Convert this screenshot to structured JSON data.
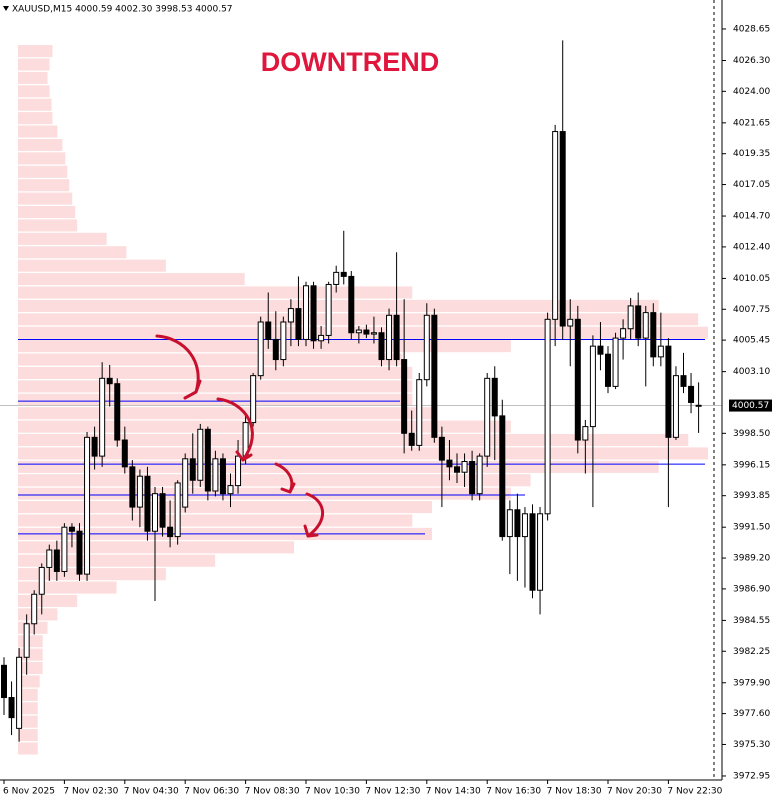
{
  "chart_data": {
    "type": "candlestick",
    "title": "XAUUSD,M15  4000.59 4002.30 3998.53 4000.57",
    "annotation": "DOWNTREND",
    "categories": [
      "6 Nov 2025",
      null,
      null,
      null,
      null,
      null,
      null,
      null,
      "7 Nov 02:30",
      null,
      null,
      null,
      null,
      null,
      null,
      null,
      "7 Nov 04:30",
      null,
      null,
      null,
      null,
      null,
      null,
      null,
      "7 Nov 06:30",
      null,
      null,
      null,
      null,
      null,
      null,
      null,
      "7 Nov 08:30",
      null,
      null,
      null,
      null,
      null,
      null,
      null,
      "7 Nov 10:30",
      null,
      null,
      null,
      null,
      null,
      null,
      null,
      "7 Nov 12:30",
      null,
      null,
      null,
      null,
      null,
      null,
      null,
      "7 Nov 14:30",
      null,
      null,
      null,
      null,
      null,
      null,
      null,
      "7 Nov 16:30",
      null,
      null,
      null,
      null,
      null,
      null,
      null,
      "7 Nov 18:30",
      null,
      null,
      null,
      null,
      null,
      null,
      null,
      "7 Nov 20:30",
      null,
      null,
      null,
      null,
      null,
      null,
      null,
      "7 Nov 22:30",
      null,
      null,
      null,
      null
    ],
    "open": [
      3981.2,
      3978.8,
      3976.5,
      3981.8,
      3984.3,
      3986.5,
      3988.5,
      3989.8,
      3988.2,
      3991.5,
      3991.2,
      3988.0,
      3998.2,
      3996.8,
      4002.6,
      4002.2,
      3998.0,
      3996.0,
      3993.0,
      3995.3,
      3991.2,
      3994.0,
      3991.5,
      3990.8,
      3993.0,
      3996.6,
      3995.0,
      3998.8,
      3994.2,
      3996.6,
      3994.0,
      3994.6,
      3996.8,
      3999.3,
      4002.8,
      4006.8,
      4005.5,
      4004.0,
      4006.8,
      4007.8,
      4005.5,
      4009.5,
      4005.4,
      4005.8,
      4009.6,
      4010.5,
      4010.2,
      4006.0,
      4006.2,
      4005.9,
      4006.0,
      4004.0,
      4007.3,
      4004.0,
      3998.5,
      3997.6,
      4002.5,
      4007.3,
      3998.2,
      3996.5,
      3996.0,
      3995.6,
      3996.4,
      3994.0,
      3996.8,
      4002.6,
      3999.8,
      3990.8,
      3992.8,
      3990.8,
      3992.5,
      3986.8,
      3992.5,
      4007.0,
      4021.0,
      4006.5,
      4007.0,
      3998.0,
      3999.0,
      4005.0,
      4004.4,
      4002.0,
      4005.6,
      4006.3,
      4008.0,
      4005.6,
      4007.5,
      4004.2,
      4005.0,
      3998.2,
      4002.8,
      4002.0,
      4000.59
    ],
    "high": [
      3981.8,
      3980.0,
      3982.5,
      3985.0,
      3986.8,
      3988.8,
      3990.2,
      3990.5,
      3991.8,
      3991.8,
      3991.8,
      3998.6,
      3999.0,
      4003.8,
      4003.6,
      4002.6,
      3999.0,
      3996.5,
      3995.8,
      3996.0,
      3994.5,
      3994.5,
      3993.5,
      3995.0,
      3997.0,
      3998.5,
      3999.2,
      3999.0,
      3997.2,
      3997.0,
      3995.5,
      3998.0,
      3999.8,
      4003.0,
      4007.2,
      4009.0,
      4007.6,
      4007.2,
      4008.5,
      4010.2,
      4009.8,
      4009.8,
      4006.5,
      4009.8,
      4011.0,
      4013.6,
      4010.6,
      4006.5,
      4006.6,
      4007.2,
      4006.4,
      4007.8,
      4012.0,
      4008.5,
      4000.2,
      4003.0,
      4008.2,
      4007.8,
      3999.0,
      3998.0,
      3997.0,
      3997.0,
      3997.2,
      3997.0,
      4003.0,
      4003.5,
      4001.0,
      3993.5,
      3994.0,
      3993.0,
      3993.2,
      3993.0,
      4007.5,
      4021.5,
      4027.8,
      4008.5,
      4008.0,
      3999.5,
      4005.8,
      4006.8,
      4005.0,
      4006.0,
      4007.0,
      4008.6,
      4009.0,
      4008.0,
      4008.2,
      4007.5,
      4005.6,
      4003.5,
      4004.5,
      4003.0,
      4002.3
    ],
    "low": [
      3977.5,
      3976.0,
      3975.5,
      3980.5,
      3983.5,
      3985.0,
      3987.5,
      3987.5,
      3987.8,
      3990.0,
      3987.5,
      3987.5,
      3995.8,
      3996.0,
      4000.5,
      3997.5,
      3995.5,
      3992.0,
      3991.5,
      3990.5,
      3986.0,
      3990.8,
      3990.0,
      3990.2,
      3992.6,
      3994.0,
      3994.5,
      3993.5,
      3993.8,
      3993.5,
      3993.0,
      3994.0,
      3996.2,
      3999.0,
      4002.5,
      4004.8,
      4003.2,
      4003.5,
      4005.0,
      4005.0,
      4005.0,
      4004.8,
      4004.8,
      4005.2,
      4009.0,
      4009.6,
      4005.5,
      4005.2,
      4005.6,
      4005.2,
      4003.5,
      4003.2,
      4003.5,
      3997.0,
      3997.2,
      3997.2,
      4002.0,
      3997.8,
      3993.0,
      3995.0,
      3994.8,
      3994.5,
      3993.5,
      3993.5,
      3996.0,
      3996.5,
      3990.5,
      3988.0,
      3987.5,
      3987.0,
      3986.2,
      3985.0,
      3992.0,
      4005.0,
      4005.5,
      4003.5,
      3997.0,
      3995.5,
      3993.0,
      4003.2,
      4001.5,
      4001.8,
      4004.0,
      4005.5,
      4005.0,
      4002.0,
      4003.5,
      4003.5,
      3993.0,
      3998.0,
      4001.5,
      4000.0,
      3998.53
    ],
    "close": [
      3978.8,
      3977.3,
      3981.8,
      3984.3,
      3986.5,
      3988.5,
      3989.8,
      3988.2,
      3991.5,
      3991.2,
      3988.0,
      3998.2,
      3996.8,
      4002.6,
      4002.2,
      3998.0,
      3996.0,
      3993.0,
      3995.3,
      3991.2,
      3994.0,
      3991.5,
      3990.8,
      3994.8,
      3996.6,
      3995.0,
      3998.8,
      3994.2,
      3996.6,
      3994.0,
      3994.6,
      3996.8,
      3999.3,
      4002.8,
      4006.8,
      4005.5,
      4004.0,
      4006.8,
      4007.8,
      4005.5,
      4009.5,
      4005.4,
      4005.8,
      4009.6,
      4010.5,
      4010.2,
      4006.0,
      4006.2,
      4005.9,
      4006.0,
      4004.0,
      4007.3,
      4004.0,
      3998.5,
      3997.6,
      4002.5,
      4007.3,
      3998.2,
      3996.5,
      3996.0,
      3995.6,
      3996.4,
      3994.0,
      3996.8,
      4002.6,
      3999.8,
      3990.8,
      3992.8,
      3990.8,
      3992.5,
      3986.8,
      3992.5,
      4007.0,
      4021.0,
      4006.5,
      4007.0,
      3998.0,
      3999.0,
      4005.0,
      4004.4,
      4002.0,
      4005.6,
      4006.3,
      4008.0,
      4005.6,
      4007.5,
      4004.2,
      4005.0,
      3998.2,
      4002.8,
      4002.0,
      4000.8,
      4000.57
    ],
    "up_color": "#ffffff",
    "down_color": "#000000",
    "levels": [
      4005.5,
      4000.9,
      3996.2,
      3993.9,
      3991.0
    ],
    "level_color": "#0000ff",
    "volume_profile": {
      "color": "#fcdcdc",
      "prices": [
        4027,
        4026,
        4025,
        4024,
        4023,
        4022,
        4021,
        4020,
        4019,
        4018,
        4017,
        4016,
        4015,
        4014,
        4013,
        4012,
        4011,
        4010,
        4009,
        4008,
        4007,
        4006,
        4005,
        4004,
        4003,
        4002,
        4001,
        4000,
        3999,
        3998,
        3997,
        3996,
        3995,
        3994,
        3993,
        3992,
        3991,
        3990,
        3989,
        3988,
        3987,
        3986,
        3985,
        3984,
        3983,
        3982,
        3981,
        3980,
        3979,
        3978,
        3977,
        3976,
        3975
      ],
      "values": [
        35,
        32,
        30,
        32,
        34,
        35,
        40,
        45,
        48,
        50,
        52,
        55,
        58,
        60,
        90,
        110,
        150,
        230,
        400,
        650,
        690,
        700,
        500,
        390,
        400,
        400,
        400,
        420,
        500,
        680,
        700,
        650,
        520,
        500,
        420,
        400,
        420,
        280,
        200,
        150,
        100,
        60,
        40,
        30,
        25,
        25,
        25,
        22,
        20,
        20,
        20,
        20,
        20
      ]
    },
    "ylim": [
      3972.65,
      4030.81
    ],
    "yticks": [
      4028.65,
      {
        "value": 4026.3,
        "label": "4026.30"
      },
      {
        "value": 4024,
        "label": "4024.00"
      },
      4021.65,
      4019.35,
      4017.05,
      {
        "value": 4014.7,
        "label": "4014.70"
      },
      {
        "value": 4012.4,
        "label": "4012.40"
      },
      4010.05,
      4007.75,
      4005.45,
      {
        "value": 4003.1,
        "label": "4003.10"
      },
      {
        "value": 3998.5,
        "label": "3998.50"
      },
      3996.15,
      3993.85,
      {
        "value": 3991.5,
        "label": "3991.50"
      },
      {
        "value": 3989.2,
        "label": "3989.20"
      },
      {
        "value": 3986.9,
        "label": "3986.90"
      },
      3984.55,
      3982.25,
      {
        "value": 3979.9,
        "label": "3979.90"
      },
      {
        "value": 3977.6,
        "label": "3977.60"
      },
      {
        "value": 3975.3,
        "label": "3975.30"
      },
      3972.95
    ]
  }
}
